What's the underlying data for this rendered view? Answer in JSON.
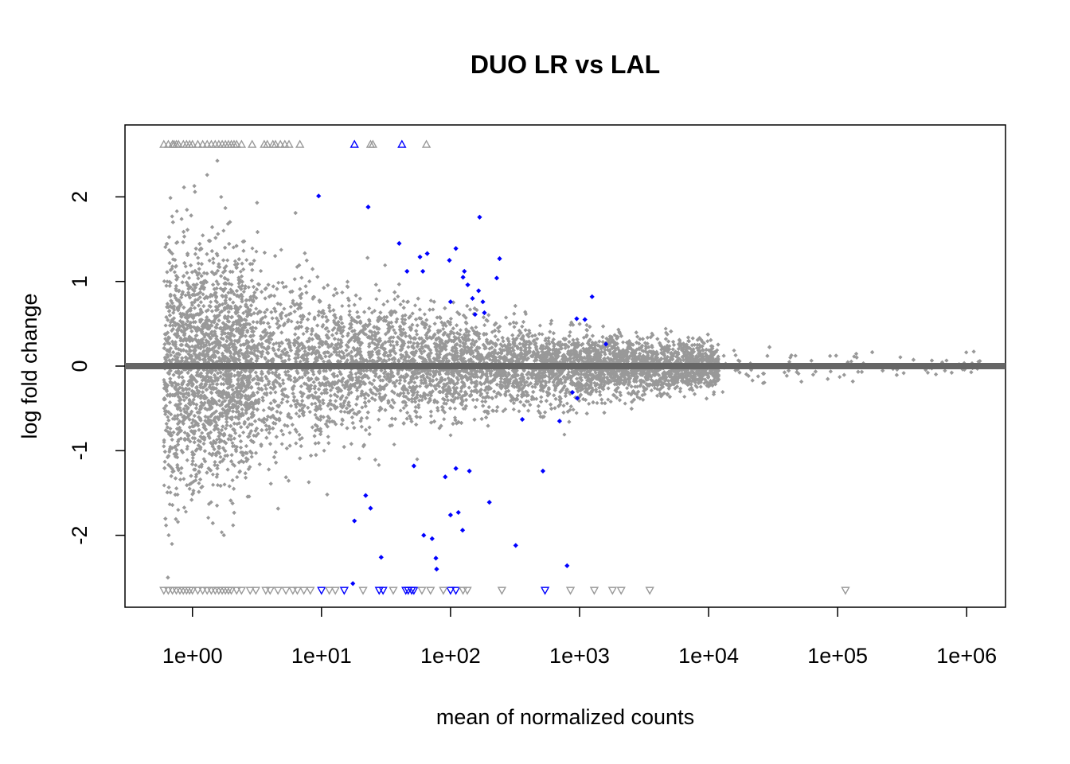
{
  "chart_data": {
    "type": "scatter",
    "title": "DUO LR vs LAL",
    "xlabel": "mean of normalized counts",
    "ylabel": "log fold change",
    "x_scale": "log10",
    "xlim": [
      0.3,
      2000000
    ],
    "ylim": [
      -2.85,
      2.85
    ],
    "x_ticks": [
      "1e+00",
      "1e+01",
      "1e+02",
      "1e+03",
      "1e+04",
      "1e+05",
      "1e+06"
    ],
    "y_ticks": [
      "-2",
      "-1",
      "0",
      "1",
      "2"
    ],
    "grid": false,
    "legend": "none",
    "reference_line_y": 0,
    "colors": {
      "not_significant": "#999999",
      "significant": "#0000ff",
      "reference_line": "#666666"
    },
    "significant_points": [
      {
        "x": 9.5,
        "y": 2.01
      },
      {
        "x": 23,
        "y": 1.88
      },
      {
        "x": 40,
        "y": 1.45
      },
      {
        "x": 46,
        "y": 1.12
      },
      {
        "x": 58,
        "y": 1.29
      },
      {
        "x": 61,
        "y": 1.12
      },
      {
        "x": 66,
        "y": 1.33
      },
      {
        "x": 98,
        "y": 1.25
      },
      {
        "x": 100,
        "y": 0.76
      },
      {
        "x": 110,
        "y": 1.39
      },
      {
        "x": 125,
        "y": 1.05
      },
      {
        "x": 128,
        "y": 1.12
      },
      {
        "x": 136,
        "y": 0.96
      },
      {
        "x": 148,
        "y": 0.8
      },
      {
        "x": 155,
        "y": 0.61
      },
      {
        "x": 165,
        "y": 0.89
      },
      {
        "x": 168,
        "y": 1.76
      },
      {
        "x": 178,
        "y": 0.76
      },
      {
        "x": 183,
        "y": 0.63
      },
      {
        "x": 228,
        "y": 1.04
      },
      {
        "x": 240,
        "y": 1.27
      },
      {
        "x": 950,
        "y": 0.56
      },
      {
        "x": 1100,
        "y": 0.55
      },
      {
        "x": 1250,
        "y": 0.82
      },
      {
        "x": 1600,
        "y": 0.26
      },
      {
        "x": 880,
        "y": -0.31
      },
      {
        "x": 960,
        "y": -0.38
      },
      {
        "x": 700,
        "y": -0.65
      },
      {
        "x": 360,
        "y": -0.63
      },
      {
        "x": 520,
        "y": -1.24
      },
      {
        "x": 18,
        "y": -1.83
      },
      {
        "x": 22,
        "y": -1.53
      },
      {
        "x": 24,
        "y": -1.68
      },
      {
        "x": 17.5,
        "y": -2.57
      },
      {
        "x": 29,
        "y": -2.26
      },
      {
        "x": 52,
        "y": -1.18
      },
      {
        "x": 62,
        "y": -2.0
      },
      {
        "x": 72,
        "y": -2.04
      },
      {
        "x": 77,
        "y": -2.27
      },
      {
        "x": 78,
        "y": -2.4
      },
      {
        "x": 91,
        "y": -1.31
      },
      {
        "x": 100,
        "y": -1.76
      },
      {
        "x": 110,
        "y": -1.21
      },
      {
        "x": 115,
        "y": -1.73
      },
      {
        "x": 124,
        "y": -1.94
      },
      {
        "x": 140,
        "y": -1.24
      },
      {
        "x": 200,
        "y": -1.61
      },
      {
        "x": 320,
        "y": -2.12
      },
      {
        "x": 800,
        "y": -2.36
      }
    ],
    "outliers_up": [
      {
        "x": 18,
        "significant": true
      },
      {
        "x": 42,
        "significant": true
      },
      {
        "x": 0.6,
        "significant": false
      },
      {
        "x": 0.65,
        "significant": false
      },
      {
        "x": 0.7,
        "significant": false
      },
      {
        "x": 0.72,
        "significant": false
      },
      {
        "x": 0.75,
        "significant": false
      },
      {
        "x": 0.78,
        "significant": false
      },
      {
        "x": 0.85,
        "significant": false
      },
      {
        "x": 0.9,
        "significant": false
      },
      {
        "x": 0.95,
        "significant": false
      },
      {
        "x": 1.0,
        "significant": false
      },
      {
        "x": 1.1,
        "significant": false
      },
      {
        "x": 1.2,
        "significant": false
      },
      {
        "x": 1.3,
        "significant": false
      },
      {
        "x": 1.4,
        "significant": false
      },
      {
        "x": 1.5,
        "significant": false
      },
      {
        "x": 1.6,
        "significant": false
      },
      {
        "x": 1.7,
        "significant": false
      },
      {
        "x": 1.8,
        "significant": false
      },
      {
        "x": 1.9,
        "significant": false
      },
      {
        "x": 2.0,
        "significant": false
      },
      {
        "x": 2.1,
        "significant": false
      },
      {
        "x": 2.2,
        "significant": false
      },
      {
        "x": 2.4,
        "significant": false
      },
      {
        "x": 2.9,
        "significant": false
      },
      {
        "x": 3.6,
        "significant": false
      },
      {
        "x": 3.8,
        "significant": false
      },
      {
        "x": 4.2,
        "significant": false
      },
      {
        "x": 4.4,
        "significant": false
      },
      {
        "x": 4.8,
        "significant": false
      },
      {
        "x": 5.2,
        "significant": false
      },
      {
        "x": 5.6,
        "significant": false
      },
      {
        "x": 6.8,
        "significant": false
      },
      {
        "x": 24,
        "significant": false
      },
      {
        "x": 25,
        "significant": false
      },
      {
        "x": 65,
        "significant": false
      }
    ],
    "outliers_down": [
      {
        "x": 10,
        "significant": true
      },
      {
        "x": 15,
        "significant": true
      },
      {
        "x": 28,
        "significant": true
      },
      {
        "x": 30,
        "significant": true
      },
      {
        "x": 45,
        "significant": true
      },
      {
        "x": 47,
        "significant": true
      },
      {
        "x": 50,
        "significant": true
      },
      {
        "x": 52,
        "significant": true
      },
      {
        "x": 100,
        "significant": true
      },
      {
        "x": 110,
        "significant": true
      },
      {
        "x": 540,
        "significant": true
      },
      {
        "x": 0.6,
        "significant": false
      },
      {
        "x": 0.65,
        "significant": false
      },
      {
        "x": 0.7,
        "significant": false
      },
      {
        "x": 0.75,
        "significant": false
      },
      {
        "x": 0.8,
        "significant": false
      },
      {
        "x": 0.85,
        "significant": false
      },
      {
        "x": 0.9,
        "significant": false
      },
      {
        "x": 0.95,
        "significant": false
      },
      {
        "x": 1.0,
        "significant": false
      },
      {
        "x": 1.1,
        "significant": false
      },
      {
        "x": 1.2,
        "significant": false
      },
      {
        "x": 1.3,
        "significant": false
      },
      {
        "x": 1.4,
        "significant": false
      },
      {
        "x": 1.5,
        "significant": false
      },
      {
        "x": 1.6,
        "significant": false
      },
      {
        "x": 1.7,
        "significant": false
      },
      {
        "x": 1.8,
        "significant": false
      },
      {
        "x": 1.9,
        "significant": false
      },
      {
        "x": 2.0,
        "significant": false
      },
      {
        "x": 2.2,
        "significant": false
      },
      {
        "x": 2.4,
        "significant": false
      },
      {
        "x": 2.8,
        "significant": false
      },
      {
        "x": 3.1,
        "significant": false
      },
      {
        "x": 3.7,
        "significant": false
      },
      {
        "x": 4.0,
        "significant": false
      },
      {
        "x": 4.6,
        "significant": false
      },
      {
        "x": 5.3,
        "significant": false
      },
      {
        "x": 6.0,
        "significant": false
      },
      {
        "x": 6.5,
        "significant": false
      },
      {
        "x": 7.3,
        "significant": false
      },
      {
        "x": 8.2,
        "significant": false
      },
      {
        "x": 11.5,
        "significant": false
      },
      {
        "x": 12.8,
        "significant": false
      },
      {
        "x": 21,
        "significant": false
      },
      {
        "x": 36,
        "significant": false
      },
      {
        "x": 60,
        "significant": false
      },
      {
        "x": 70,
        "significant": false
      },
      {
        "x": 88,
        "significant": false
      },
      {
        "x": 125,
        "significant": false
      },
      {
        "x": 135,
        "significant": false
      },
      {
        "x": 250,
        "significant": false
      },
      {
        "x": 850,
        "significant": false
      },
      {
        "x": 1300,
        "significant": false
      },
      {
        "x": 1800,
        "significant": false
      },
      {
        "x": 2100,
        "significant": false
      },
      {
        "x": 3500,
        "significant": false
      },
      {
        "x": 115000,
        "significant": false
      }
    ],
    "background_cloud": {
      "description_of_trend": "variance of log fold change decreases as mean count increases",
      "n_points": 14000,
      "x_range": [
        0.6,
        1300000
      ]
    }
  }
}
